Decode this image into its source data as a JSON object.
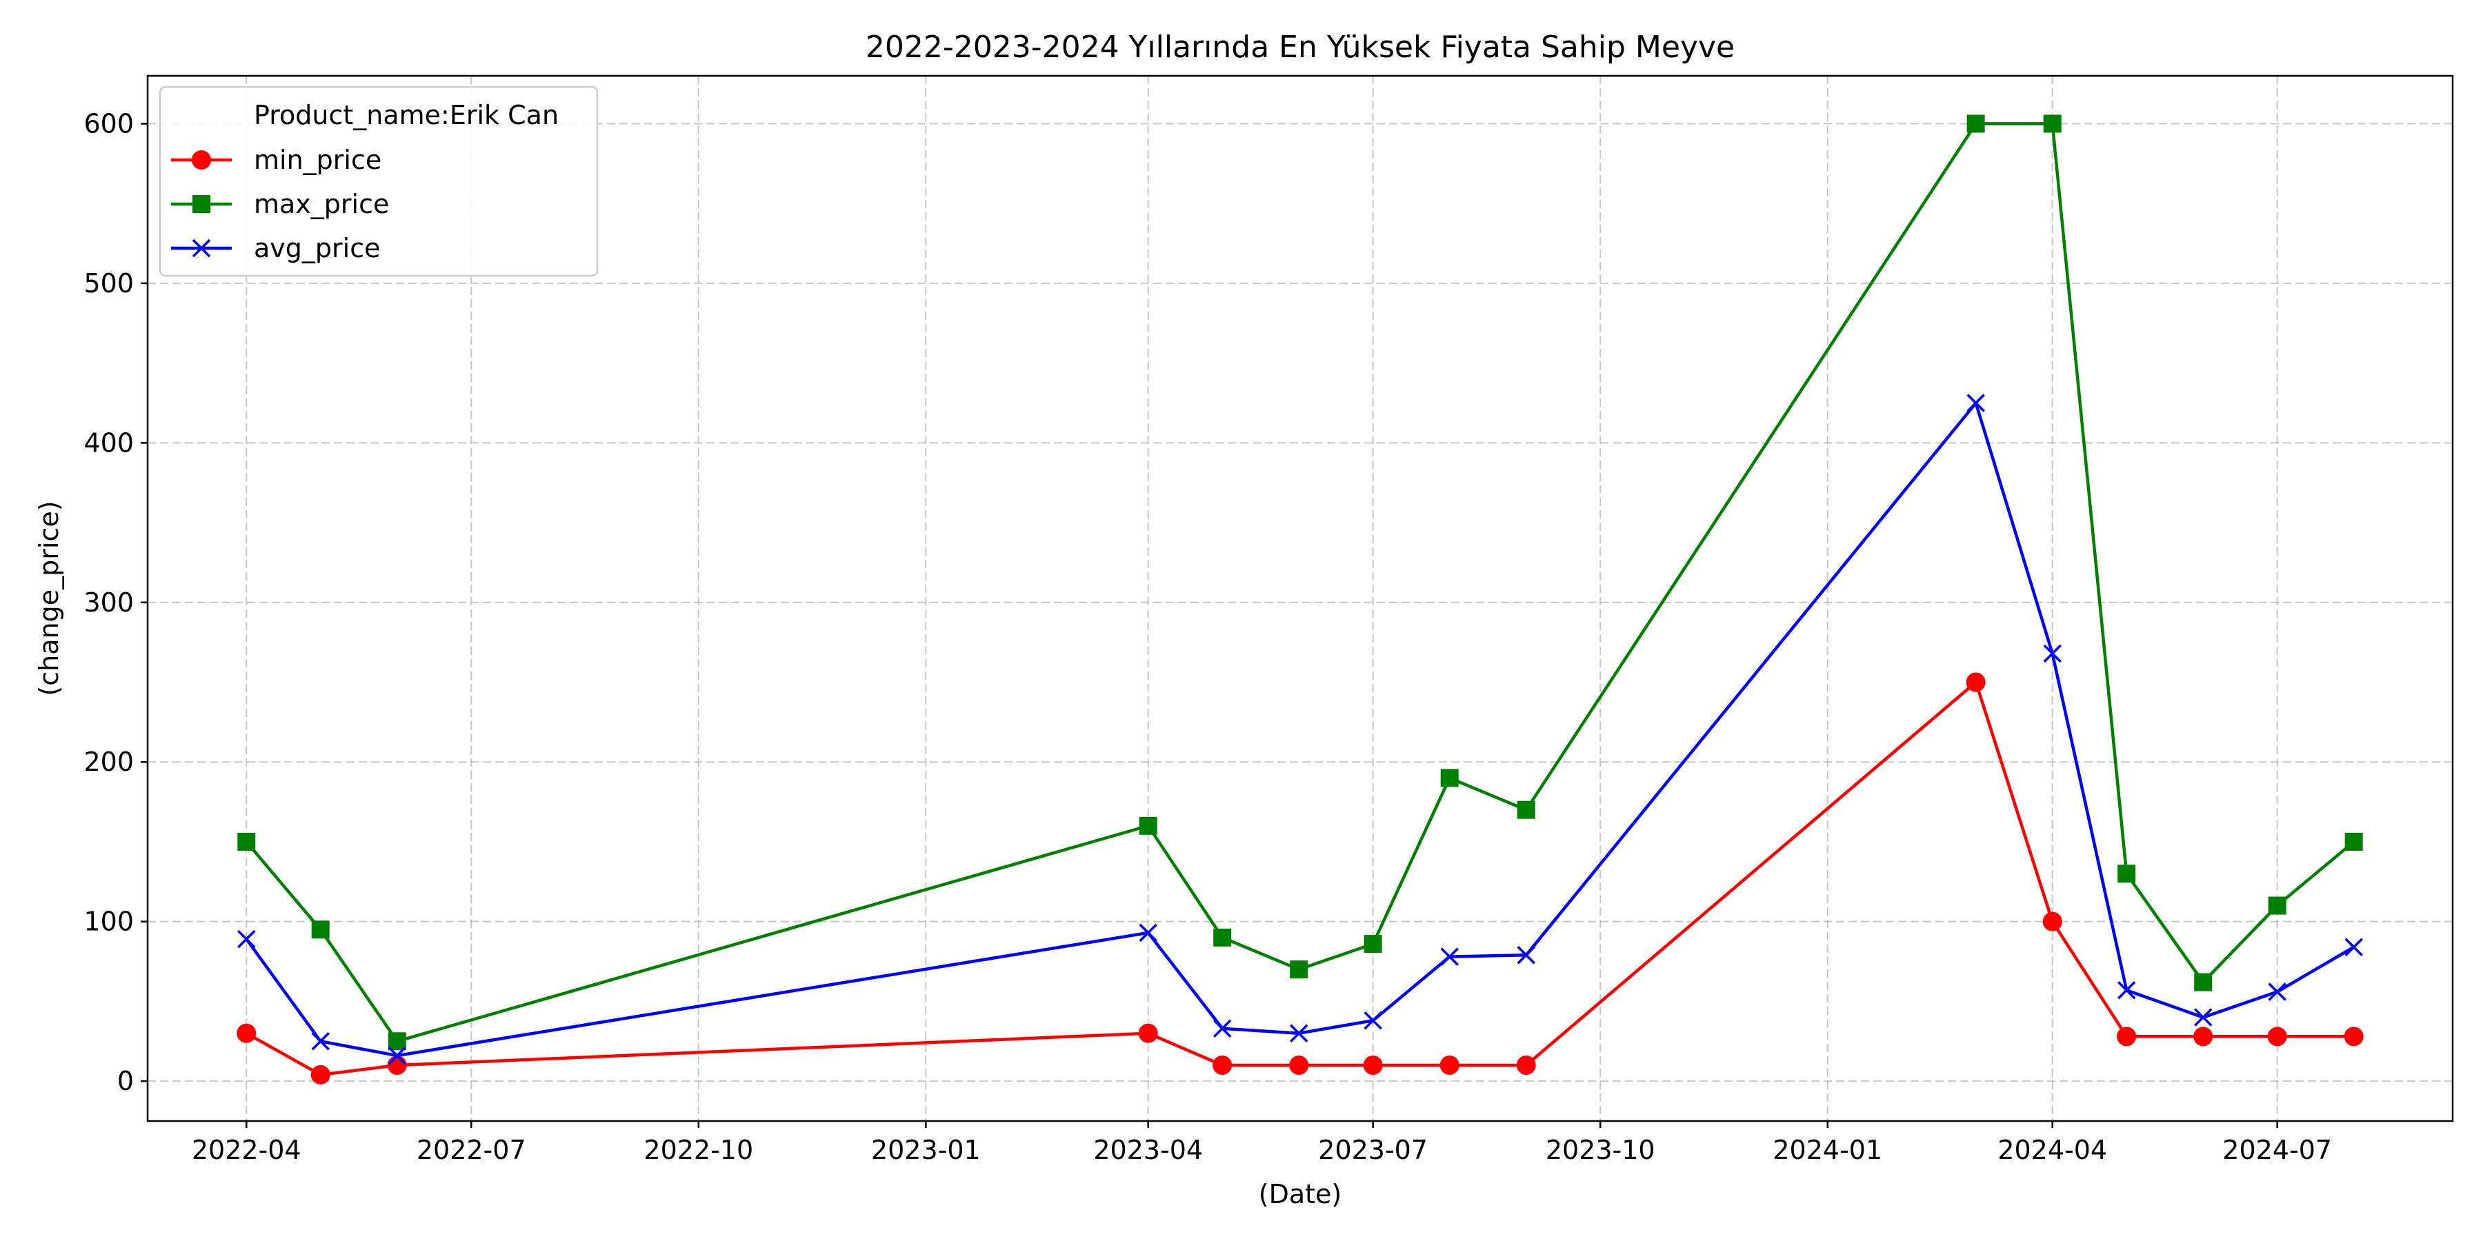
{
  "chart_data": {
    "type": "line",
    "title": "2022-2023-2024 Yılların­da En Yüksek Fiyata Sahip Meyve",
    "xlabel": "(Date)",
    "ylabel": "(change_price)",
    "xlim": [
      "2022-02-20",
      "2024-09-10"
    ],
    "ylim": [
      -25,
      630
    ],
    "yticks": [
      0,
      100,
      200,
      300,
      400,
      500,
      600
    ],
    "xticks": [
      "2022-04",
      "2022-07",
      "2022-10",
      "2023-01",
      "2023-04",
      "2023-07",
      "2023-10",
      "2024-01",
      "2024-04",
      "2024-07"
    ],
    "grid": true,
    "legend": {
      "placement": "top-left",
      "header": "Product_name:Erik Can"
    },
    "x": [
      "2022-04-01",
      "2022-05-01",
      "2022-06-01",
      "2023-04-01",
      "2023-05-01",
      "2023-06-01",
      "2023-07-01",
      "2023-08-01",
      "2023-09-01",
      "2024-03-01",
      "2024-04-01",
      "2024-05-01",
      "2024-06-01",
      "2024-07-01",
      "2024-08-01"
    ],
    "series": [
      {
        "name": "min_price",
        "color": "#ff0000",
        "marker": "circle",
        "values": [
          30,
          4,
          10,
          30,
          10,
          10,
          10,
          10,
          10,
          250,
          100,
          28,
          28,
          28,
          28
        ]
      },
      {
        "name": "max_price",
        "color": "#008000",
        "marker": "square",
        "values": [
          150,
          95,
          25,
          160,
          90,
          70,
          86,
          190,
          170,
          600,
          600,
          130,
          62,
          110,
          150
        ]
      },
      {
        "name": "avg_price",
        "color": "#0000ff",
        "marker": "x",
        "values": [
          89,
          25,
          16,
          93,
          33,
          30,
          38,
          78,
          79,
          425,
          268,
          57,
          40,
          56,
          84
        ]
      }
    ]
  }
}
